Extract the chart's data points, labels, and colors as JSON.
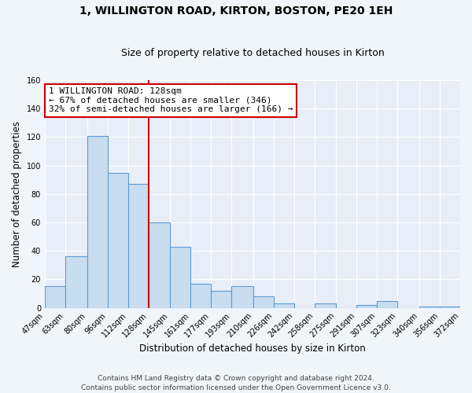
{
  "title": "1, WILLINGTON ROAD, KIRTON, BOSTON, PE20 1EH",
  "subtitle": "Size of property relative to detached houses in Kirton",
  "xlabel": "Distribution of detached houses by size in Kirton",
  "ylabel": "Number of detached properties",
  "bin_edges": [
    47,
    63,
    80,
    96,
    112,
    128,
    145,
    161,
    177,
    193,
    210,
    226,
    242,
    258,
    275,
    291,
    307,
    323,
    340,
    356,
    372
  ],
  "bar_heights": [
    15,
    36,
    121,
    95,
    87,
    60,
    43,
    17,
    12,
    15,
    8,
    3,
    0,
    3,
    0,
    2,
    5,
    0,
    1,
    1
  ],
  "bar_color": "#c9ddf0",
  "bar_edge_color": "#5b9bd5",
  "vline_x": 128,
  "vline_color": "#cc0000",
  "annotation_title": "1 WILLINGTON ROAD: 128sqm",
  "annotation_line1": "← 67% of detached houses are smaller (346)",
  "annotation_line2": "32% of semi-detached houses are larger (166) →",
  "annotation_box_facecolor": "#ffffff",
  "annotation_box_edgecolor": "#cc0000",
  "tick_labels": [
    "47sqm",
    "63sqm",
    "80sqm",
    "96sqm",
    "112sqm",
    "128sqm",
    "145sqm",
    "161sqm",
    "177sqm",
    "193sqm",
    "210sqm",
    "226sqm",
    "242sqm",
    "258sqm",
    "275sqm",
    "291sqm",
    "307sqm",
    "323sqm",
    "340sqm",
    "356sqm",
    "372sqm"
  ],
  "ylim": [
    0,
    160
  ],
  "yticks": [
    0,
    20,
    40,
    60,
    80,
    100,
    120,
    140,
    160
  ],
  "footer1": "Contains HM Land Registry data © Crown copyright and database right 2024.",
  "footer2": "Contains public sector information licensed under the Open Government Licence v3.0.",
  "bg_color": "#f0f4fb",
  "plot_bg_color": "#e8eef8",
  "grid_color": "#ffffff",
  "title_fontsize": 10,
  "subtitle_fontsize": 9,
  "axis_label_fontsize": 8.5,
  "tick_fontsize": 7,
  "annotation_fontsize": 8,
  "footer_fontsize": 6.5
}
